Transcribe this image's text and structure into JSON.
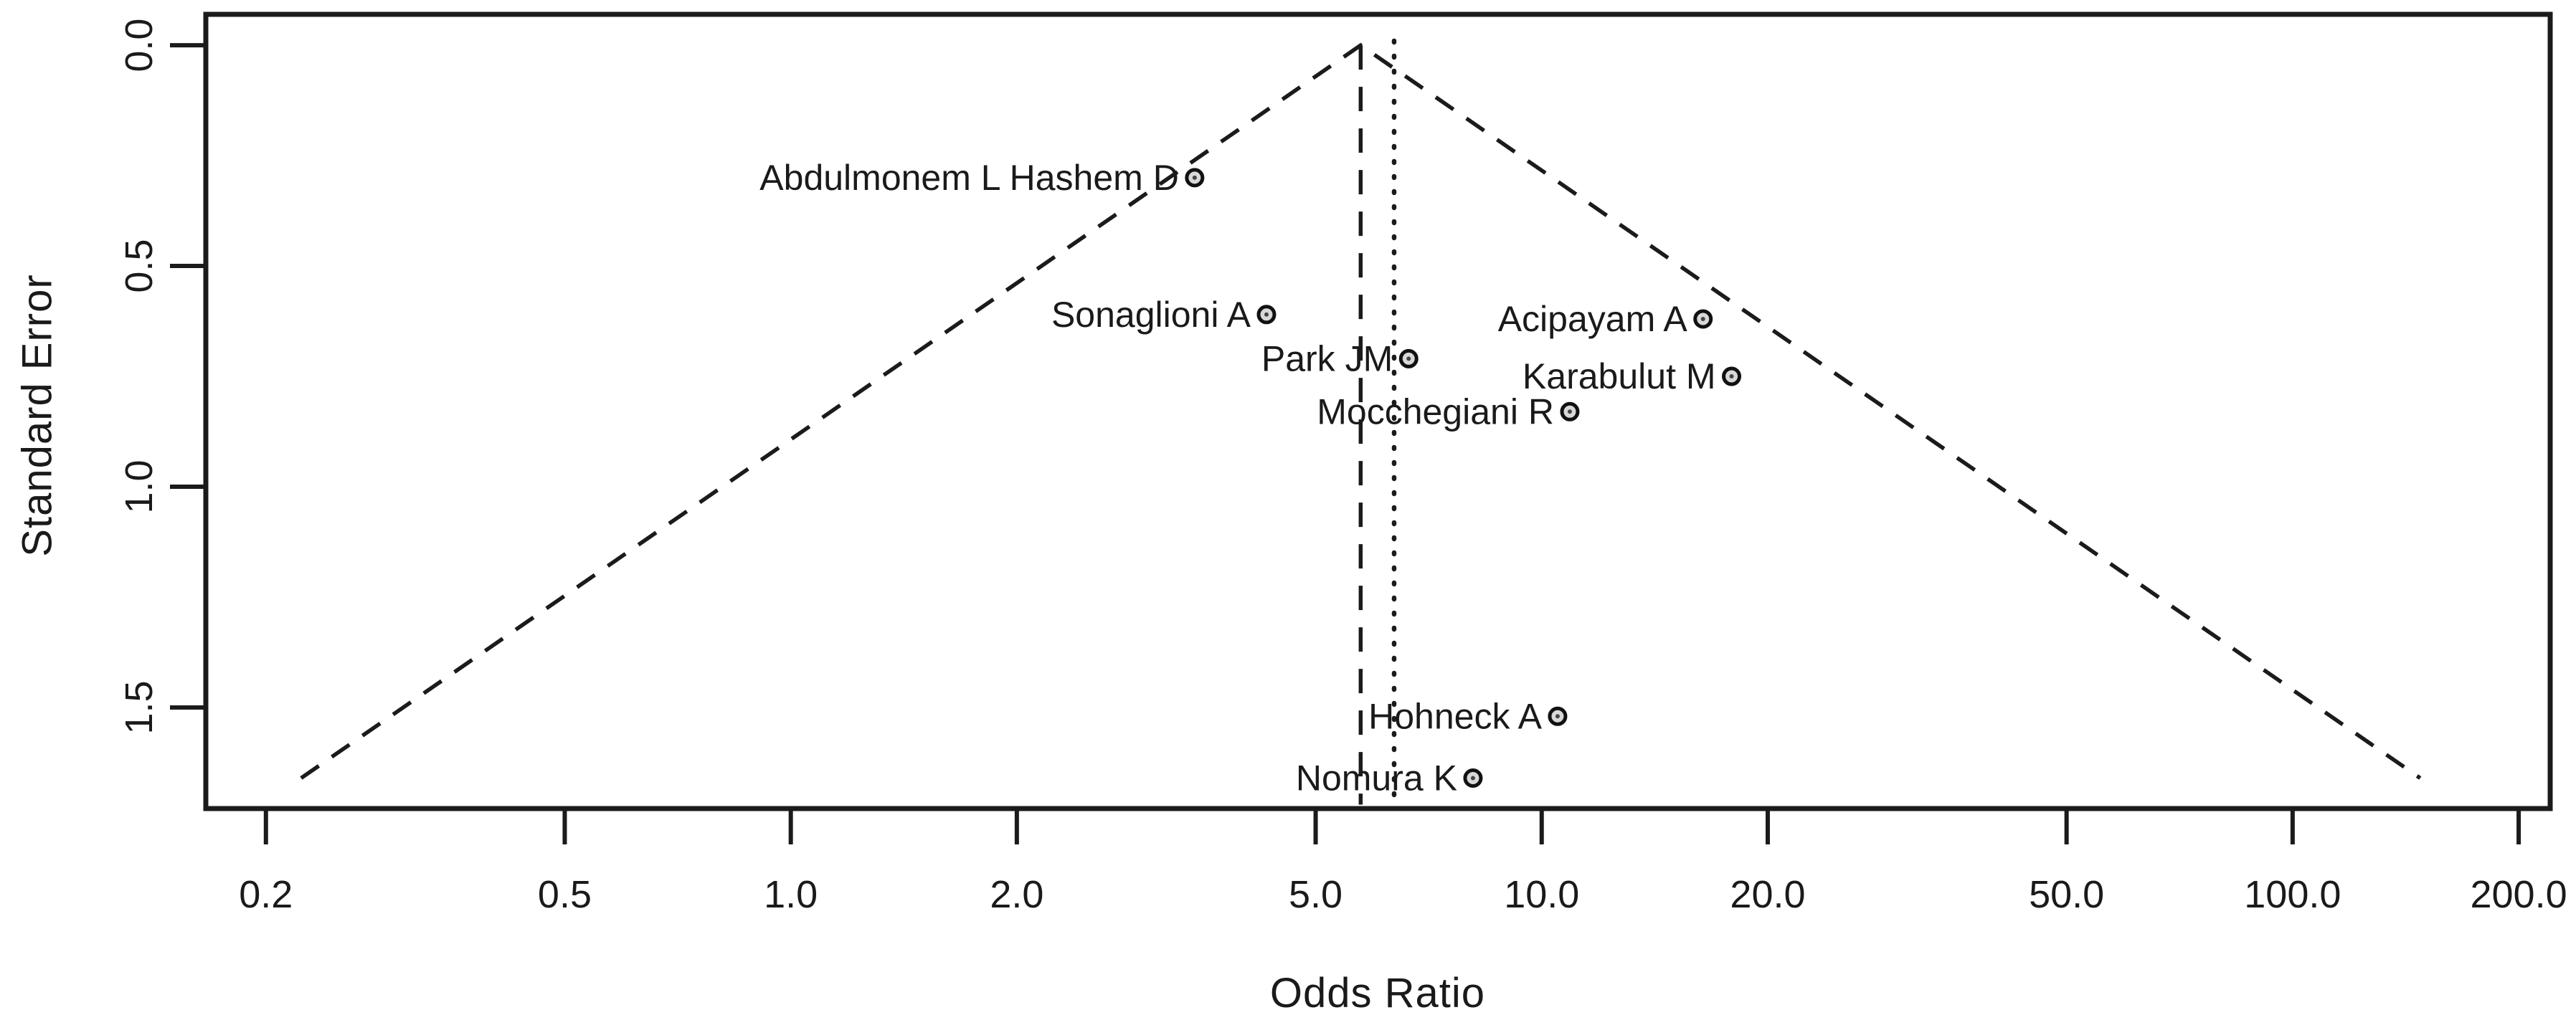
{
  "figure": {
    "kind": "funnel-plot",
    "background": "#ffffff",
    "line_color": "#1b1b1b",
    "text_color": "#1a1a1a",
    "marker_fill": "#d8d8d8",
    "marker_core": "#444444"
  },
  "chart_data": {
    "type": "scatter",
    "title": "",
    "xlabel": "Odds Ratio",
    "ylabel": "Standard Error",
    "x_scale": "log10",
    "x_range_log10": [
      -0.779,
      2.343
    ],
    "y_range": [
      -0.07,
      1.729
    ],
    "y_inverted": true,
    "grid": false,
    "legend": false,
    "x_ticks": [
      0.2,
      0.5,
      1.0,
      2.0,
      5.0,
      10.0,
      20.0,
      50.0,
      100.0,
      200.0
    ],
    "x_tick_labels": [
      "0.2",
      "0.5",
      "1.0",
      "2.0",
      "5.0",
      "10.0",
      "20.0",
      "50.0",
      "100.0",
      "200.0"
    ],
    "y_ticks": [
      0.0,
      0.5,
      1.0,
      1.5
    ],
    "y_tick_labels": [
      "0.0",
      "0.5",
      "1.0",
      "1.5"
    ],
    "points": [
      {
        "label": "Abdulmonem L Hashem D",
        "or": 3.45,
        "se": 0.3
      },
      {
        "label": "Sonaglioni A",
        "or": 4.3,
        "se": 0.61
      },
      {
        "label": "Acipayam A",
        "or": 16.4,
        "se": 0.62
      },
      {
        "label": "Park JM",
        "or": 6.65,
        "se": 0.71
      },
      {
        "label": "Karabulut M",
        "or": 17.9,
        "se": 0.75
      },
      {
        "label": "Mocchegiani R",
        "or": 10.9,
        "se": 0.83
      },
      {
        "label": "Hohneck A",
        "or": 10.5,
        "se": 1.52
      },
      {
        "label": "Nomura K",
        "or": 8.1,
        "se": 1.66
      }
    ],
    "reference_lines": [
      {
        "name": "pooled-estimate-line",
        "style": "dashed",
        "or": 5.74,
        "se_top": 0.0,
        "se_bottom": 1.72
      },
      {
        "name": "secondary-estimate-line",
        "style": "dotted",
        "or": 6.36,
        "se_top": -0.01,
        "se_bottom": 1.729
      }
    ],
    "funnel": {
      "center_or": 5.74,
      "apex_se": 0.0,
      "base_se": 1.66,
      "halfwidth_log10_per_se": 0.85,
      "style": "dashed"
    }
  }
}
